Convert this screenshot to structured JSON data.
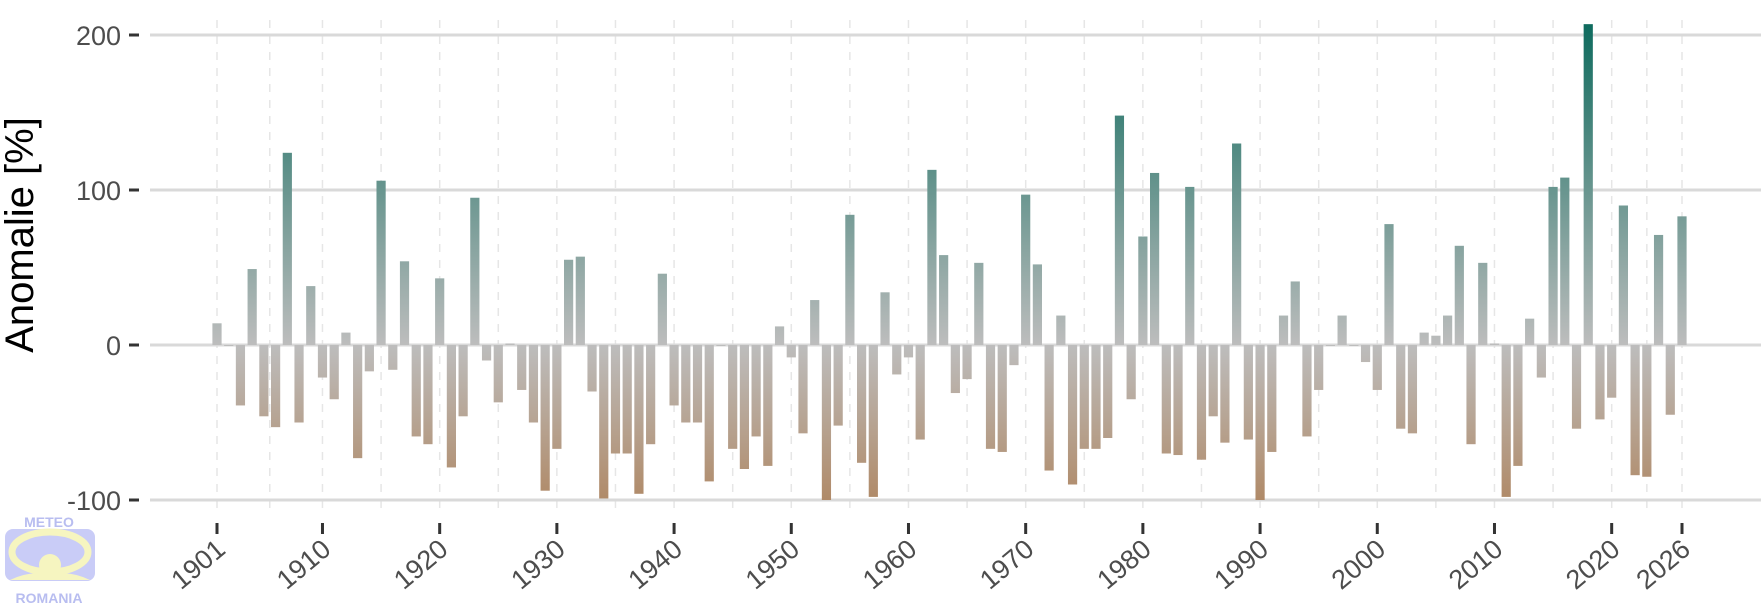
{
  "chart_data": {
    "type": "bar",
    "ylabel": "Anomalie [%]",
    "xlabel": "",
    "ylim": [
      -100,
      210
    ],
    "y_ticks": [
      -100,
      0,
      100,
      200
    ],
    "x_ticks": [
      1901,
      1910,
      1920,
      1930,
      1940,
      1950,
      1960,
      1970,
      1980,
      1990,
      2000,
      2010,
      2020,
      2026
    ],
    "grid": true,
    "colors": {
      "high": "#0e6b5e",
      "zero": "#bdbdbd",
      "low": "#b08a68"
    },
    "x_start": 1901,
    "values": [
      14,
      0,
      -39,
      49,
      -46,
      -53,
      124,
      -50,
      38,
      -21,
      -35,
      8,
      -73,
      -17,
      106,
      -16,
      54,
      -59,
      -64,
      43,
      -79,
      -46,
      95,
      -10,
      -37,
      1,
      -29,
      -50,
      -94,
      -67,
      55,
      57,
      -30,
      -99,
      -70,
      -70,
      -96,
      -64,
      46,
      -39,
      -50,
      -50,
      -88,
      0,
      -67,
      -80,
      -59,
      -78,
      12,
      -8,
      -57,
      29,
      -100,
      -52,
      84,
      -76,
      -98,
      34,
      -19,
      -8,
      -61,
      113,
      58,
      -31,
      -22,
      53,
      -67,
      -69,
      -13,
      97,
      52,
      -81,
      19,
      -90,
      -67,
      -67,
      -60,
      148,
      -35,
      70,
      111,
      -70,
      -71,
      102,
      -74,
      -46,
      -63,
      130,
      -61,
      -100,
      -69,
      19,
      41,
      -59,
      -29,
      0,
      19,
      0,
      -11,
      -29,
      78,
      -54,
      -57,
      8,
      6,
      19,
      64,
      -64,
      53,
      1,
      -98,
      -78,
      17,
      -21,
      102,
      108,
      -54,
      207,
      -48,
      -34,
      90,
      -84,
      -85,
      71,
      -45,
      83
    ]
  },
  "logo": {
    "top_text": "METEO",
    "bottom_text": "ROMANIA"
  }
}
